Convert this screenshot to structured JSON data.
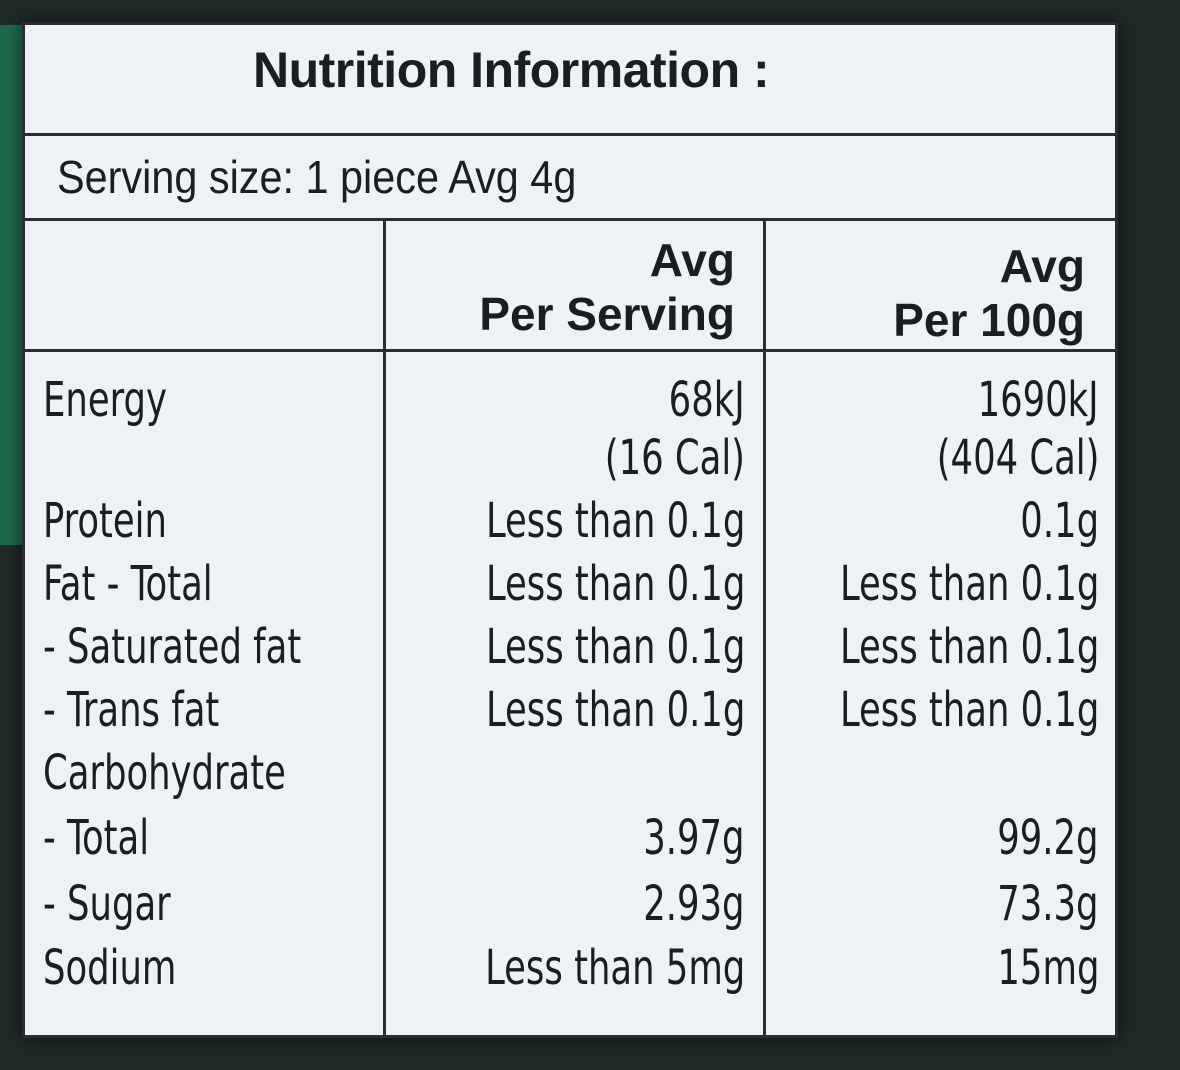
{
  "title": "Nutrition Information :",
  "serving_size": "Serving size: 1 piece Avg 4g",
  "columns": {
    "per_serving": {
      "line1": "Avg",
      "line2": "Per Serving"
    },
    "per_100g": {
      "line1": "Avg",
      "line2": "Per 100g"
    }
  },
  "rows": [
    {
      "name": "Energy",
      "per_serving": "68kJ",
      "per_100g": "1690kJ"
    },
    {
      "name": "",
      "per_serving": "(16 Cal)",
      "per_100g": "(404 Cal)"
    },
    {
      "name": "Protein",
      "per_serving": "Less than 0.1g",
      "per_100g": "0.1g"
    },
    {
      "name": "Fat - Total",
      "per_serving": "Less than 0.1g",
      "per_100g": "Less than 0.1g"
    },
    {
      "name": " - Saturated fat",
      "per_serving": "Less than 0.1g",
      "per_100g": "Less than 0.1g"
    },
    {
      "name": " - Trans fat",
      "per_serving": "Less than 0.1g",
      "per_100g": "Less than 0.1g"
    },
    {
      "name": "Carbohydrate",
      "per_serving": "",
      "per_100g": ""
    },
    {
      "name": "- Total",
      "per_serving": "3.97g",
      "per_100g": "99.2g"
    },
    {
      "name": "- Sugar",
      "per_serving": "2.93g",
      "per_100g": "73.3g"
    },
    {
      "name": "Sodium",
      "per_serving": "Less than 5mg",
      "per_100g": "15mg"
    }
  ]
}
